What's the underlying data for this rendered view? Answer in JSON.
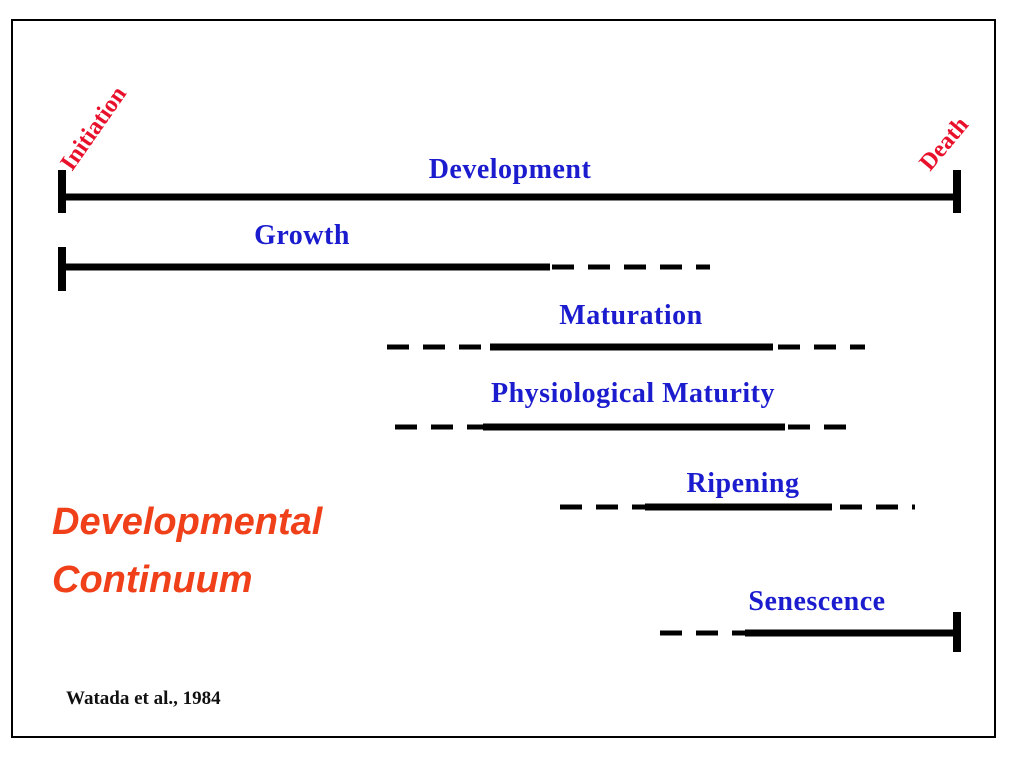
{
  "diagram": {
    "start_label": "Initiation",
    "end_label": "Death",
    "stages": [
      {
        "label": "Development"
      },
      {
        "label": "Growth"
      },
      {
        "label": "Maturation"
      },
      {
        "label": "Physiological Maturity"
      },
      {
        "label": "Ripening"
      },
      {
        "label": "Senescence"
      }
    ],
    "title_lines": [
      "Developmental",
      "Continuum"
    ],
    "citation": "Watada et al., 1984"
  }
}
